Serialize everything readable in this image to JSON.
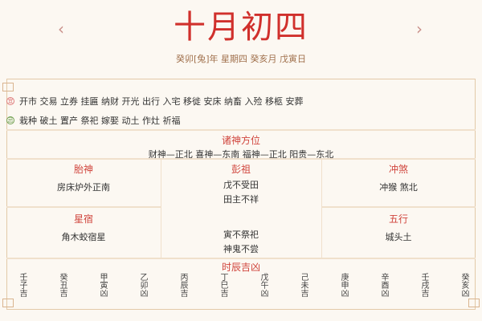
{
  "header": {
    "title": "十月初四",
    "subtitle": "癸卯[兔]年 星期四 癸亥月 戊寅日",
    "prev": "‹",
    "next": "‹"
  },
  "yi": {
    "icon": "宜",
    "items": "开市 交易 立券 挂匾 纳财 开光 出行 入宅 移徙 安床 纳畜 入殓 移柩 安葬"
  },
  "ji": {
    "icon": "忌",
    "items": "栽种 破土 置产 祭祀 嫁娶 动土 作灶 祈福"
  },
  "gods": {
    "title": "诸神方位",
    "text": "财神—正北 喜神—东南 福神—正北 阳贵—东北"
  },
  "taishen": {
    "title": "胎神",
    "text": "房床炉外正南"
  },
  "xingxiu": {
    "title": "星宿",
    "text": "角木蛟宿星"
  },
  "pengzu": {
    "title": "彭祖",
    "line1": "戊不受田",
    "line2": "田主不祥",
    "line3": "寅不祭祀",
    "line4": "神鬼不尝"
  },
  "chongsha": {
    "title": "冲煞",
    "text": "冲猴 煞北"
  },
  "wuxing": {
    "title": "五行",
    "text": "城头土"
  },
  "hours": {
    "title": "时辰吉凶",
    "items": [
      "壬子吉",
      "癸丑吉",
      "甲寅凶",
      "乙卯凶",
      "丙辰吉",
      "丁巳吉",
      "戊午凶",
      "己未吉",
      "庚申凶",
      "辛酉凶",
      "壬戌吉",
      "癸亥凶"
    ]
  },
  "colors": {
    "accent": "#d0302c",
    "border": "#e3c9a8"
  }
}
